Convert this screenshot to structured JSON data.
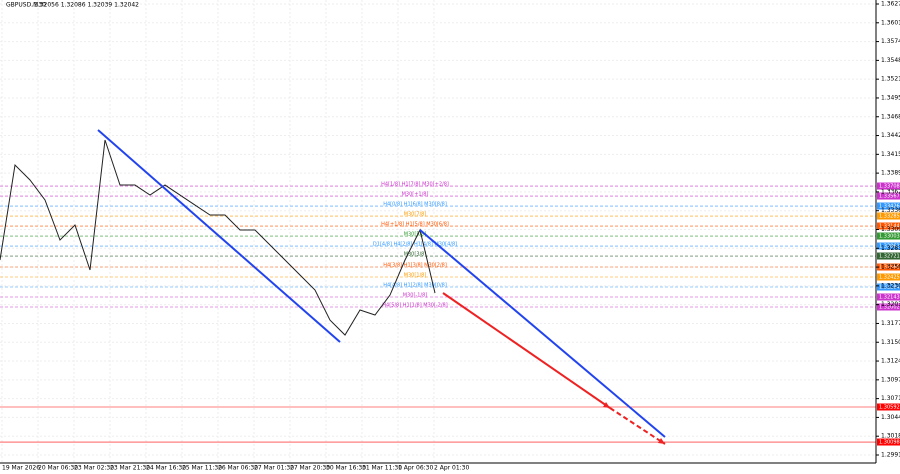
{
  "header": {
    "symbol": "GBPUSD,M30",
    "quotes": "1.32056 1.32086 1.32039 1.32042"
  },
  "price_axis": {
    "ticks": [
      "1.36275",
      "1.36010",
      "1.35745",
      "1.35480",
      "1.35215",
      "1.34950",
      "1.34685",
      "1.34420",
      "1.34155",
      "1.33890",
      "1.33625",
      "1.33360",
      "1.33095",
      "1.32830",
      "1.32565",
      "1.32300",
      "1.32035",
      "1.31770",
      "1.31505",
      "1.31240",
      "1.30975",
      "1.30710",
      "1.30445",
      "1.30180",
      "1.29915"
    ]
  },
  "time_axis": {
    "labels": [
      "19 Mar 2026",
      "20 Mar 06:30",
      "23 Mar 02:30",
      "23 Mar 21:30",
      "24 Mar 16:30",
      "25 Mar 11:30",
      "26 Mar 06:30",
      "27 Mar 01:30",
      "27 Mar 20:30",
      "30 Mar 16:30",
      "31 Mar 11:30",
      "1 Apr 06:30",
      "2 Apr 01:30"
    ]
  },
  "price_path": [
    1.32665,
    1.34004,
    1.33793,
    1.33511,
    1.32947,
    1.33158,
    1.32524,
    1.34357,
    1.33722,
    1.33722,
    1.33581,
    1.33722,
    1.33581,
    1.3344,
    1.33299,
    1.33299,
    1.33088,
    1.33088,
    1.32876,
    1.32665,
    1.32453,
    1.32242,
    1.31818,
    1.31607,
    1.3196,
    1.31889,
    1.32171,
    1.32665,
    1.33088,
    1.32199
  ],
  "levels": [
    {
      "label": "H4[1/8] H1[7/8] M30[+2/8]",
      "price": 1.33708,
      "color": "#cc33cc"
    },
    {
      "label": "M30[+1/8]",
      "price": 1.33567,
      "color": "#cc33cc"
    },
    {
      "label": "H4[0/8] H1[6/8] M30[8/8]",
      "price": 1.33426,
      "color": "#3399ff"
    },
    {
      "label": "M30[7/8]",
      "price": 1.33285,
      "color": "#ff9900"
    },
    {
      "label": "H4[+1/8] H1[5/8] M30[6/8]",
      "price": 1.33144,
      "color": "#ff5500"
    },
    {
      "label": "M30[5/8]",
      "price": 1.33003,
      "color": "#339933"
    },
    {
      "label": "D1[4/8] H4[2/8] H1[4/8] M30[4/8]",
      "price": 1.32862,
      "color": "#3399ff"
    },
    {
      "label": "M30[3/8]",
      "price": 1.32721,
      "color": "#336633"
    },
    {
      "label": "H4[3/8] H1[3/8] M30[2/8]",
      "price": 1.32566,
      "color": "#ff5500"
    },
    {
      "label": "M30[1/8]",
      "price": 1.32425,
      "color": "#ff9900"
    },
    {
      "label": "H4[4/8] H1[2/8] M30[0/8]",
      "price": 1.32284,
      "color": "#3399ff"
    },
    {
      "label": "M30[-1/8]",
      "price": 1.32143,
      "color": "#cc33cc"
    },
    {
      "label": "H4[5/8] H1[1/8] M30[-2/8]",
      "price": 1.32002,
      "color": "#cc33cc"
    },
    {
      "label": "",
      "price": 1.30592,
      "color": "#ff0000"
    },
    {
      "label": "",
      "price": 1.30098,
      "color": "#ff0000"
    }
  ]
}
